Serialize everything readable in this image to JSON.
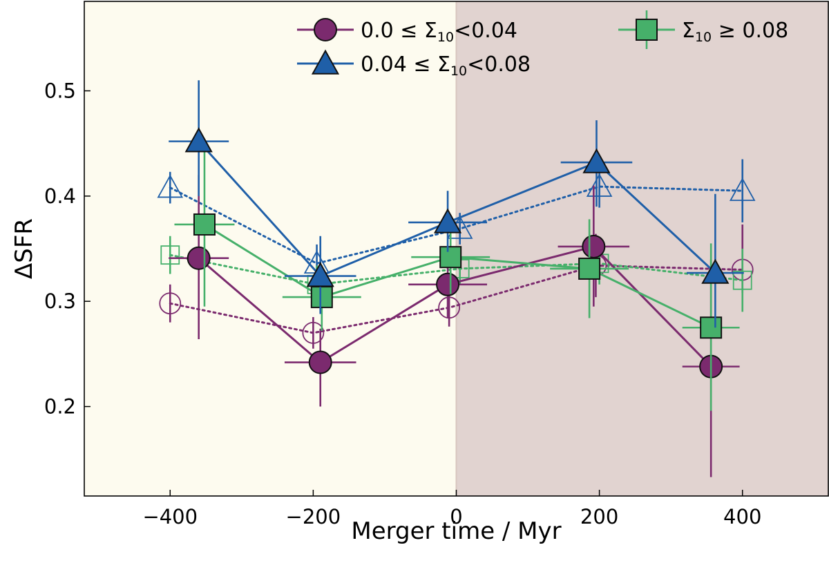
{
  "chart_data": {
    "type": "scatter",
    "title": "",
    "xlabel": "Merger time / Myr",
    "ylabel": "ΔSFR",
    "xlim": [
      -520,
      520
    ],
    "ylim": [
      0.115,
      0.585
    ],
    "xticks": [
      -400,
      -200,
      0,
      200,
      400
    ],
    "xtick_labels": [
      "−400",
      "−200",
      "0",
      "200",
      "400"
    ],
    "yticks": [
      0.2,
      0.3,
      0.4,
      0.5
    ],
    "ytick_labels": [
      "0.2",
      "0.3",
      "0.4",
      "0.5"
    ],
    "background_regions": [
      {
        "name": "pre-merger",
        "x_from": -520,
        "x_to": 0,
        "color": "#fdfbef"
      },
      {
        "name": "post-merger",
        "x_from": 0,
        "x_to": 520,
        "color": "#e1d3d0"
      }
    ],
    "zero_line_color": "#d8c6bf",
    "legend_position": "top",
    "series": [
      {
        "name": "0.0 ≤ Σ10<0.04",
        "legend_prefix": "0.0 ≤ Σ",
        "legend_sub": "10",
        "legend_suffix": "<0.04",
        "color": "#7b2a6e",
        "marker_fill": "#7b2a6e",
        "marker": "circle",
        "style": "solid",
        "in_legend": true,
        "points": [
          {
            "x": -360,
            "y": 0.341,
            "xerr": 42,
            "yerr_low": 0.077,
            "yerr_high": 0.079
          },
          {
            "x": -190,
            "y": 0.242,
            "xerr": 50,
            "yerr_low": 0.042,
            "yerr_high": 0.032
          },
          {
            "x": -12,
            "y": 0.316,
            "xerr": 55,
            "yerr_low": 0.032,
            "yerr_high": 0.032
          },
          {
            "x": 192,
            "y": 0.352,
            "xerr": 50,
            "yerr_low": 0.057,
            "yerr_high": 0.058
          },
          {
            "x": 356,
            "y": 0.238,
            "xerr": 40,
            "yerr_low": 0.105,
            "yerr_high": 0.102
          }
        ]
      },
      {
        "name": "0.04 ≤ Σ10<0.08",
        "legend_prefix": "0.04 ≤ Σ",
        "legend_sub": "10",
        "legend_suffix": "<0.08",
        "color": "#1f5fa8",
        "marker_fill": "#1f5fa8",
        "marker": "triangle",
        "style": "solid",
        "in_legend": true,
        "points": [
          {
            "x": -360,
            "y": 0.452,
            "xerr": 42,
            "yerr_low": 0.052,
            "yerr_high": 0.058
          },
          {
            "x": -190,
            "y": 0.324,
            "xerr": 50,
            "yerr_low": 0.036,
            "yerr_high": 0.038
          },
          {
            "x": -12,
            "y": 0.375,
            "xerr": 55,
            "yerr_low": 0.028,
            "yerr_high": 0.03
          },
          {
            "x": 196,
            "y": 0.432,
            "xerr": 50,
            "yerr_low": 0.042,
            "yerr_high": 0.04
          },
          {
            "x": 362,
            "y": 0.327,
            "xerr": 40,
            "yerr_low": 0.052,
            "yerr_high": 0.075
          }
        ]
      },
      {
        "name": "Σ10 ≥ 0.08",
        "legend_prefix": "Σ",
        "legend_sub": "10",
        "legend_suffix": " ≥ 0.08",
        "color": "#46b06a",
        "marker_fill": "#46b06a",
        "marker": "square",
        "style": "solid",
        "in_legend": true,
        "points": [
          {
            "x": -352,
            "y": 0.373,
            "xerr": 42,
            "yerr_low": 0.078,
            "yerr_high": 0.072
          },
          {
            "x": -188,
            "y": 0.304,
            "xerr": 55,
            "yerr_low": 0.032,
            "yerr_high": 0.03
          },
          {
            "x": -8,
            "y": 0.342,
            "xerr": 55,
            "yerr_low": 0.035,
            "yerr_high": 0.035
          },
          {
            "x": 186,
            "y": 0.331,
            "xerr": 55,
            "yerr_low": 0.047,
            "yerr_high": 0.047
          },
          {
            "x": 356,
            "y": 0.275,
            "xerr": 40,
            "yerr_low": 0.079,
            "yerr_high": 0.08
          }
        ]
      },
      {
        "name": "0.0 ≤ Σ10<0.04 (open)",
        "color": "#7b2a6e",
        "marker_fill": "none",
        "marker": "circle",
        "style": "dotted",
        "in_legend": false,
        "points": [
          {
            "x": -400,
            "y": 0.298,
            "xerr": 0,
            "yerr_low": 0.018,
            "yerr_high": 0.018
          },
          {
            "x": -200,
            "y": 0.27,
            "xerr": 0,
            "yerr_low": 0.015,
            "yerr_high": 0.015
          },
          {
            "x": -10,
            "y": 0.294,
            "xerr": 0,
            "yerr_low": 0.018,
            "yerr_high": 0.018
          },
          {
            "x": 195,
            "y": 0.334,
            "xerr": 0,
            "yerr_low": 0.03,
            "yerr_high": 0.03
          },
          {
            "x": 400,
            "y": 0.33,
            "xerr": 0,
            "yerr_low": 0.022,
            "yerr_high": 0.043
          }
        ]
      },
      {
        "name": "0.04 ≤ Σ10<0.08 (open)",
        "color": "#1f5fa8",
        "marker_fill": "none",
        "marker": "triangle",
        "style": "dotted",
        "in_legend": false,
        "points": [
          {
            "x": -400,
            "y": 0.408,
            "xerr": 0,
            "yerr_low": 0.015,
            "yerr_high": 0.015
          },
          {
            "x": -195,
            "y": 0.336,
            "xerr": 0,
            "yerr_low": 0.018,
            "yerr_high": 0.018
          },
          {
            "x": 5,
            "y": 0.369,
            "xerr": 0,
            "yerr_low": 0.015,
            "yerr_high": 0.015
          },
          {
            "x": 200,
            "y": 0.409,
            "xerr": 0,
            "yerr_low": 0.02,
            "yerr_high": 0.02
          },
          {
            "x": 400,
            "y": 0.405,
            "xerr": 0,
            "yerr_low": 0.03,
            "yerr_high": 0.03
          }
        ]
      },
      {
        "name": "Σ10 ≥ 0.08 (open)",
        "color": "#46b06a",
        "marker_fill": "none",
        "marker": "square",
        "style": "dotted",
        "in_legend": false,
        "points": [
          {
            "x": -400,
            "y": 0.344,
            "xerr": 0,
            "yerr_low": 0.018,
            "yerr_high": 0.018
          },
          {
            "x": -195,
            "y": 0.316,
            "xerr": 0,
            "yerr_low": 0.018,
            "yerr_high": 0.018
          },
          {
            "x": 5,
            "y": 0.331,
            "xerr": 0,
            "yerr_low": 0.015,
            "yerr_high": 0.015
          },
          {
            "x": 200,
            "y": 0.336,
            "xerr": 0,
            "yerr_low": 0.02,
            "yerr_high": 0.02
          },
          {
            "x": 400,
            "y": 0.32,
            "xerr": 0,
            "yerr_low": 0.03,
            "yerr_high": 0.03
          }
        ]
      }
    ]
  }
}
